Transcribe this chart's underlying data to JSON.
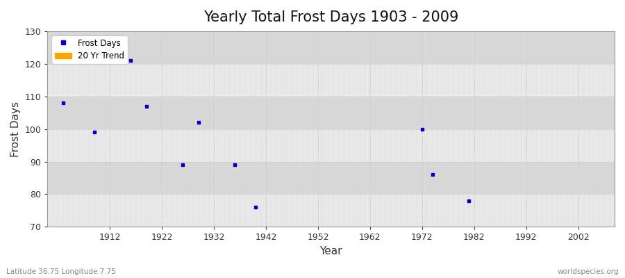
{
  "title": "Yearly Total Frost Days 1903 - 2009",
  "xlabel": "Year",
  "ylabel": "Frost Days",
  "years": [
    1903,
    1909,
    1916,
    1919,
    1926,
    1929,
    1936,
    1940,
    1972,
    1974,
    1981
  ],
  "frost_days": [
    108,
    99,
    121,
    107,
    89,
    102,
    89,
    76,
    100,
    86,
    78
  ],
  "point_color": "#0000CC",
  "marker": "s",
  "marker_size": 3,
  "xlim": [
    1900,
    2009
  ],
  "ylim": [
    70,
    130
  ],
  "xticks": [
    1912,
    1922,
    1932,
    1942,
    1952,
    1962,
    1972,
    1982,
    1992,
    2002
  ],
  "yticks": [
    70,
    80,
    90,
    100,
    110,
    120,
    130
  ],
  "fig_bg_color": "#ffffff",
  "plot_bg_color_light": "#eaeaea",
  "plot_bg_color_dark": "#d8d8d8",
  "grid_color": "#ffffff",
  "legend_frost_color": "#0000CC",
  "legend_trend_color": "#FFA500",
  "bottom_left_text": "Latitude 36.75 Longitude 7.75",
  "bottom_right_text": "worldspecies.org",
  "title_fontsize": 15,
  "band_ranges": [
    [
      70,
      80
    ],
    [
      80,
      90
    ],
    [
      90,
      100
    ],
    [
      100,
      110
    ],
    [
      110,
      120
    ],
    [
      120,
      130
    ]
  ],
  "band_colors": [
    "#e8e8e8",
    "#d8d8d8",
    "#e8e8e8",
    "#d8d8d8",
    "#e8e8e8",
    "#d8d8d8"
  ]
}
